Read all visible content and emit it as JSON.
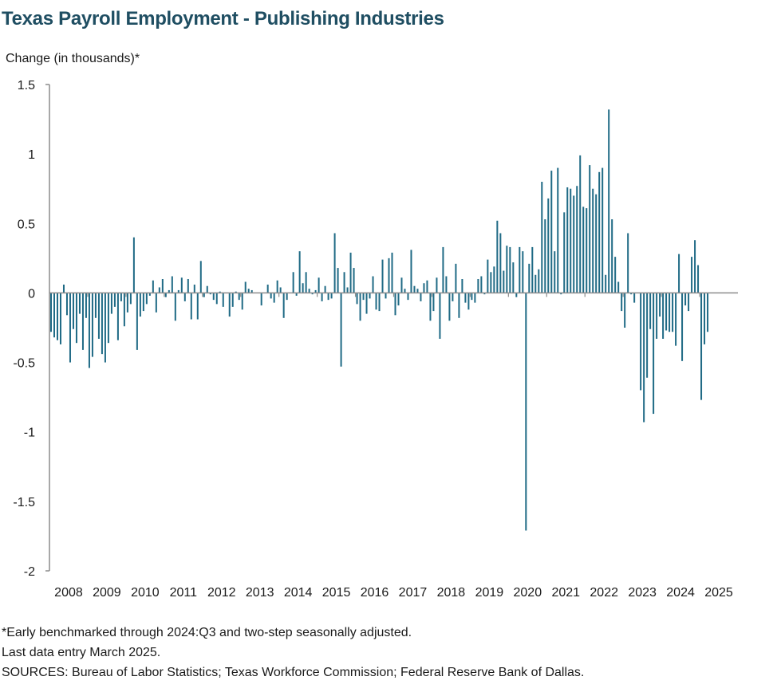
{
  "chart_data": {
    "type": "bar",
    "title": "Texas Payroll Employment - Publishing Industries",
    "ylabel": "Change (in thousands)*",
    "xlabel": "",
    "ylim": [
      -2,
      1.5
    ],
    "yticks": [
      1.5,
      1,
      0.5,
      0,
      -0.5,
      -1,
      -1.5,
      -2
    ],
    "ytick_labels": [
      "1.5",
      "1",
      "0.5",
      "0",
      "-0.5",
      "-1",
      "-1.5",
      "-2"
    ],
    "x_start": "2008-01",
    "x_end": "2025-03",
    "xtick_labels": [
      "2008",
      "2009",
      "2010",
      "2011",
      "2012",
      "2013",
      "2014",
      "2015",
      "2016",
      "2017",
      "2018",
      "2019",
      "2020",
      "2021",
      "2022",
      "2023",
      "2024",
      "2025"
    ],
    "bar_color": "#1f6a85",
    "series": [
      {
        "values": [
          -0.28,
          -0.32,
          -0.34,
          -0.37,
          0.06,
          -0.16,
          -0.5,
          -0.26,
          -0.36,
          -0.15,
          -0.41,
          -0.18,
          -0.54,
          -0.46,
          -0.18,
          -0.33,
          -0.44,
          -0.5,
          -0.36,
          -0.15,
          -0.1,
          -0.34,
          -0.06,
          -0.24,
          -0.14,
          -0.08,
          0.4,
          -0.41,
          -0.17,
          -0.13,
          -0.08,
          -0.02,
          0.09,
          -0.14,
          0.04,
          0.1,
          -0.03,
          0.02,
          0.12,
          -0.2,
          0.02,
          0.11,
          -0.06,
          0.1,
          -0.19,
          0.06,
          -0.19,
          0.23,
          -0.03,
          0.05,
          -0.01,
          -0.05,
          -0.08,
          0.01,
          -0.1,
          0.0,
          -0.17,
          -0.1,
          0.01,
          -0.05,
          -0.12,
          0.08,
          0.03,
          0.02,
          0.0,
          0.0,
          -0.09,
          0.0,
          0.06,
          -0.04,
          -0.07,
          0.09,
          0.04,
          -0.18,
          -0.05,
          0.0,
          0.15,
          -0.02,
          0.3,
          0.07,
          0.15,
          0.03,
          -0.01,
          0.02,
          0.11,
          -0.06,
          0.05,
          -0.05,
          -0.04,
          0.43,
          0.18,
          -0.53,
          0.15,
          0.04,
          0.29,
          0.18,
          -0.08,
          -0.2,
          -0.05,
          -0.15,
          -0.04,
          0.12,
          -0.12,
          -0.13,
          0.24,
          -0.04,
          0.25,
          0.29,
          -0.16,
          -0.09,
          0.11,
          0.03,
          -0.05,
          0.31,
          0.05,
          0.03,
          -0.06,
          0.07,
          0.09,
          -0.2,
          -0.13,
          0.11,
          -0.33,
          0.33,
          0.12,
          -0.2,
          -0.06,
          0.21,
          -0.18,
          0.1,
          -0.07,
          -0.12,
          -0.05,
          -0.07,
          0.1,
          0.12,
          -0.01,
          0.24,
          0.15,
          0.19,
          0.52,
          0.43,
          0.16,
          0.34,
          0.33,
          0.22,
          -0.03,
          0.33,
          0.3,
          -1.71,
          0.21,
          0.33,
          0.13,
          0.17,
          0.8,
          0.53,
          0.68,
          0.88,
          0.3,
          0.9,
          -0.01,
          0.58,
          0.76,
          0.75,
          0.7,
          0.77,
          0.99,
          0.62,
          0.61,
          0.92,
          0.75,
          0.71,
          0.87,
          0.9,
          0.13,
          1.32,
          0.53,
          0.26,
          0.08,
          -0.13,
          -0.25,
          0.43,
          -0.01,
          -0.07,
          0.0,
          -0.7,
          -0.93,
          -0.61,
          -0.26,
          -0.87,
          -0.33,
          -0.17,
          -0.33,
          -0.27,
          -0.28,
          -0.28,
          -0.38,
          0.28,
          -0.49,
          -0.09,
          -0.13,
          0.26,
          0.38,
          0.2,
          -0.77,
          -0.37,
          -0.28
        ]
      }
    ]
  },
  "footer": {
    "note1": "*Early benchmarked through 2024:Q3  and two-step seasonally adjusted.",
    "note2": "Last data entry March 2025.",
    "sources": "SOURCES:  Bureau of Labor Statistics;  Texas Workforce Commission;  Federal Reserve Bank of Dallas."
  }
}
